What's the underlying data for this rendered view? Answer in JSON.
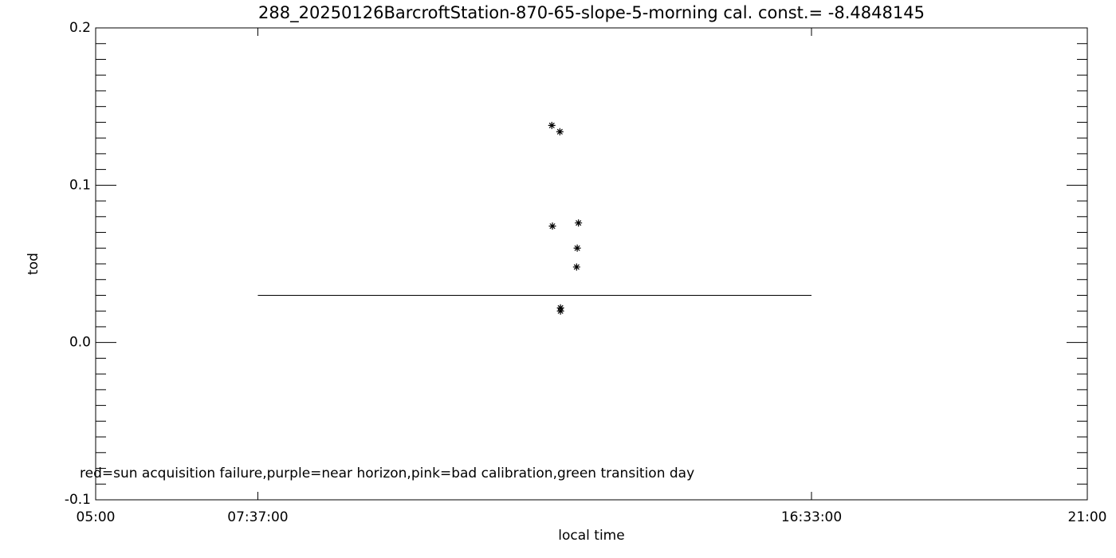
{
  "chart_data": {
    "type": "scatter",
    "title": "288_20250126BarcroftStation-870-65-slope-5-morning cal. const.= -8.4848145",
    "x_label": "local time",
    "y_label": "tod",
    "annotation": "red=sun acquisition failure,purple=near horizon,pink=bad calibration,green transition day",
    "x": [
      12.36,
      12.49,
      12.37,
      12.79,
      12.77,
      12.76,
      12.5,
      12.5
    ],
    "values": [
      0.138,
      0.134,
      0.074,
      0.076,
      0.06,
      0.048,
      0.022,
      0.02
    ],
    "marker": "*",
    "color": "#000000",
    "reference_line": {
      "x": [
        7.6167,
        16.55
      ],
      "y": [
        0.03,
        0.03
      ]
    },
    "xlim": [
      5,
      21
    ],
    "xticks": [
      {
        "value": 5,
        "label": "05:00"
      },
      {
        "value": 7.6167,
        "label": "07:37:00"
      },
      {
        "value": 16.55,
        "label": "16:33:00"
      },
      {
        "value": 21,
        "label": "21:00"
      }
    ],
    "ylim": [
      -0.1,
      0.2
    ],
    "yticks": [
      -0.1,
      {
        "value": 0,
        "label": "0.0"
      },
      0.1,
      0.2
    ]
  }
}
